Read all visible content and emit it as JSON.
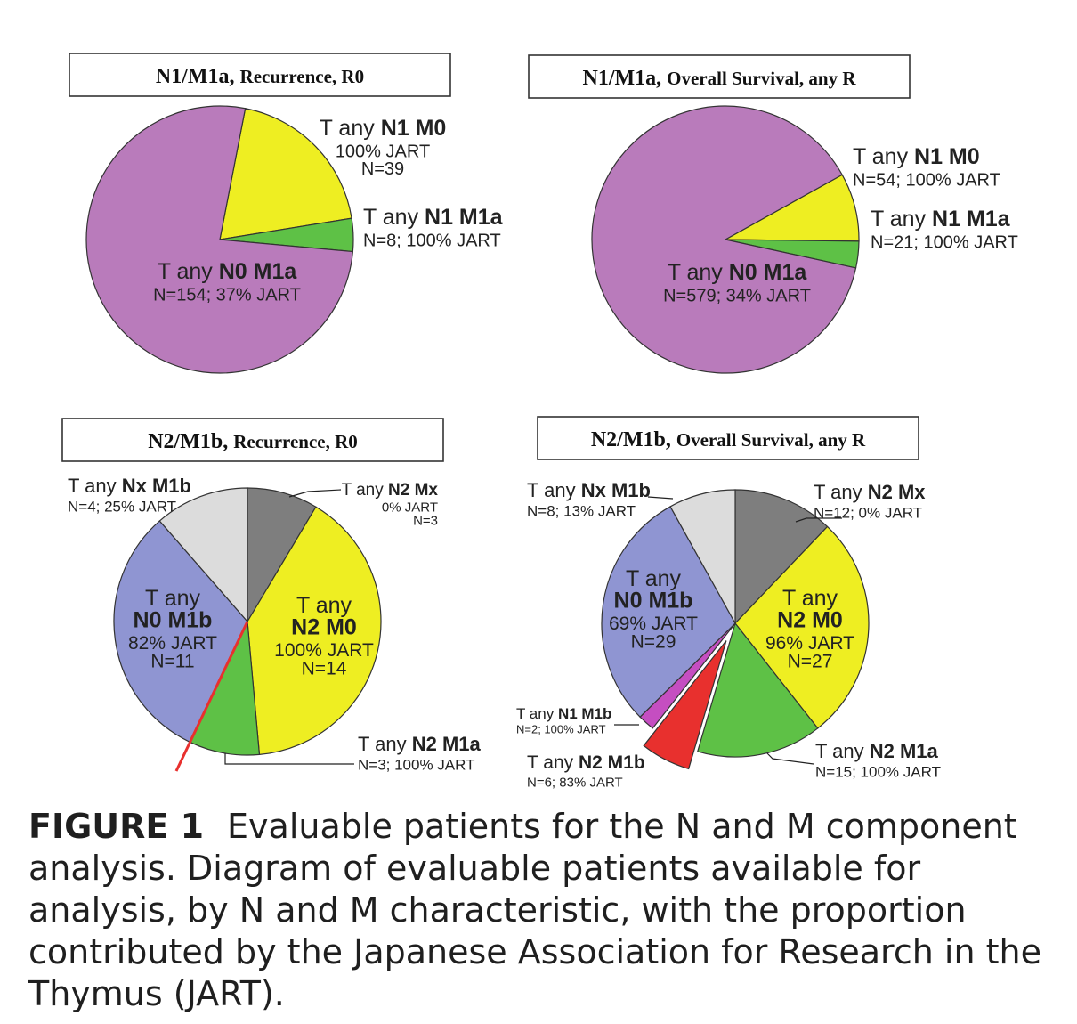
{
  "caption": {
    "label": "FIGURE 1",
    "text": "Evaluable patients for the N and M component analysis. Diagram of evaluable patients available for analysis, by N and M characteristic, with the proportion contributed by the Japanese Association for Research in the Thymus (JART)."
  },
  "colors": {
    "purple": "#b97bbb",
    "yellow": "#eeee22",
    "green": "#5ec146",
    "gray": "#7e7e7e",
    "lightgray": "#dcdcdc",
    "blue": "#8f95d2",
    "magenta": "#c54ec1",
    "red": "#e8302e",
    "redline": "#e8302e"
  },
  "chart_data": [
    {
      "type": "pie",
      "title_main": "N1/M1a,",
      "title_sub": "Recurrence, R0",
      "slices": [
        {
          "name": "T any N1 M0",
          "value": 39,
          "pct_jart": 100,
          "color": "yellow",
          "label_lines": [
            "T any |N1 M0",
            "100% JART",
            "N=39"
          ]
        },
        {
          "name": "T any N1 M1a",
          "value": 8,
          "pct_jart": 100,
          "color": "green",
          "label_lines": [
            "T any |N1 M1a",
            "N=8; 100% JART"
          ]
        },
        {
          "name": "T any N0 M1a",
          "value": 154,
          "pct_jart": 37,
          "color": "purple",
          "label_lines": [
            "T any |N0 M1a",
            "N=154; 37% JART"
          ]
        }
      ]
    },
    {
      "type": "pie",
      "title_main": "N1/M1a,",
      "title_sub": "Overall Survival, any R",
      "slices": [
        {
          "name": "T any N1 M0",
          "value": 54,
          "pct_jart": 100,
          "color": "yellow",
          "label_lines": [
            "T any |N1 M0",
            "N=54; 100% JART"
          ]
        },
        {
          "name": "T any N1 M1a",
          "value": 21,
          "pct_jart": 100,
          "color": "green",
          "label_lines": [
            "T any |N1 M1a",
            "N=21; 100% JART"
          ]
        },
        {
          "name": "T any N0 M1a",
          "value": 579,
          "pct_jart": 34,
          "color": "purple",
          "label_lines": [
            "T any |N0 M1a",
            "N=579; 34% JART"
          ]
        }
      ]
    },
    {
      "type": "pie",
      "title_main": "N2/M1b,",
      "title_sub": "Recurrence, R0",
      "slices": [
        {
          "name": "T any N2 Mx",
          "value": 3,
          "pct_jart": 0,
          "color": "gray",
          "label_lines": [
            "T any |N2 Mx",
            "0% JART",
            "N=3"
          ]
        },
        {
          "name": "T any N2 M0",
          "value": 14,
          "pct_jart": 100,
          "color": "yellow",
          "label_lines": [
            "T any",
            "|N2 M0",
            "100% JART",
            "N=14"
          ]
        },
        {
          "name": "T any N2 M1a",
          "value": 3,
          "pct_jart": 100,
          "color": "green",
          "label_lines": [
            "T any |N2 M1a",
            "N=3; 100% JART"
          ]
        },
        {
          "name": "T any N0 M1b",
          "value": 11,
          "pct_jart": 82,
          "color": "blue",
          "label_lines": [
            "T any",
            "|N0 M1b",
            "82% JART",
            "N=11"
          ]
        },
        {
          "name": "T any Nx M1b",
          "value": 4,
          "pct_jart": 25,
          "color": "lightgray",
          "label_lines": [
            "T any |Nx M1b",
            "N=4; 25% JART"
          ]
        }
      ]
    },
    {
      "type": "pie",
      "title_main": "N2/M1b,",
      "title_sub": "Overall Survival, any R",
      "slices": [
        {
          "name": "T any N2 Mx",
          "value": 12,
          "pct_jart": 0,
          "color": "gray",
          "label_lines": [
            "T any |N2 Mx",
            "N=12; 0% JART"
          ]
        },
        {
          "name": "T any N2 M0",
          "value": 27,
          "pct_jart": 96,
          "color": "yellow",
          "label_lines": [
            "T any",
            "|N2 M0",
            "96% JART",
            "N=27"
          ]
        },
        {
          "name": "T any N2 M1a",
          "value": 15,
          "pct_jart": 100,
          "color": "green",
          "label_lines": [
            "T any |N2 M1a",
            "N=15; 100% JART"
          ]
        },
        {
          "name": "T any N2 M1b",
          "value": 6,
          "pct_jart": 83,
          "color": "red",
          "exploded": true,
          "label_lines": [
            "T any |N2 M1b",
            "N=6; 83% JART"
          ]
        },
        {
          "name": "T any N1 M1b",
          "value": 2,
          "pct_jart": 100,
          "color": "magenta",
          "label_lines": [
            "T any |N1 M1b",
            "N=2; 100% JART"
          ]
        },
        {
          "name": "T any N0 M1b",
          "value": 29,
          "pct_jart": 69,
          "color": "blue",
          "label_lines": [
            "T any",
            "|N0 M1b",
            "69% JART",
            "N=29"
          ]
        },
        {
          "name": "T any Nx M1b",
          "value": 8,
          "pct_jart": 13,
          "color": "lightgray",
          "label_lines": [
            "T any |Nx M1b",
            "N=8; 13% JART"
          ]
        }
      ]
    }
  ]
}
